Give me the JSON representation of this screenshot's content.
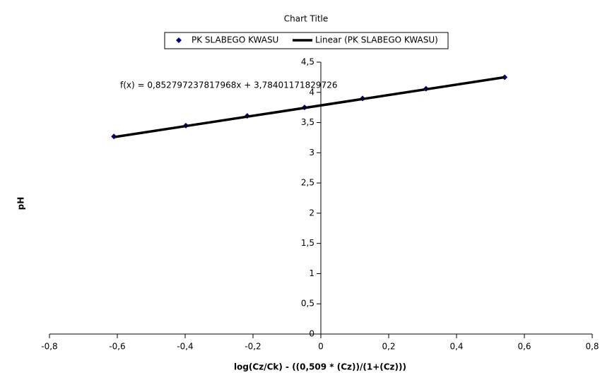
{
  "chart_data": {
    "type": "scatter",
    "title": "Chart Title",
    "x_label": "log(Cz/Ck) - ((0,509 * (Cz))/(1+(Cz)))",
    "y_label": "pH",
    "annotation": "f(x) = 0,852797237817968x + 3,78401171829726",
    "legend": "top",
    "series": [
      {
        "name": "PK SLABEGO KWASU",
        "color": "#000080",
        "marker": "diamond",
        "x": [
          -0.61,
          -0.398,
          -0.217,
          -0.048,
          0.123,
          0.31,
          0.542
        ],
        "values": [
          3.27,
          3.45,
          3.61,
          3.75,
          3.9,
          4.06,
          4.25
        ]
      },
      {
        "name": "Linear (PK SLABEGO KWASU)",
        "color": "#000000",
        "marker": "line",
        "x": [
          -0.61,
          0.542
        ],
        "values": [
          3.26,
          4.25
        ]
      }
    ],
    "xlim": [
      -0.8,
      0.8
    ],
    "xticks": [
      {
        "value": -0.8,
        "label": "-0,8"
      },
      {
        "value": -0.6,
        "label": "-0,6"
      },
      {
        "value": -0.4,
        "label": "-0,4"
      },
      {
        "value": -0.2,
        "label": "-0,2"
      },
      0,
      {
        "value": 0.2,
        "label": "0,2"
      },
      {
        "value": 0.4,
        "label": "0,4"
      },
      {
        "value": 0.6,
        "label": "0,6"
      },
      {
        "value": 0.8,
        "label": "0,8"
      }
    ],
    "ylim": [
      0,
      4.5
    ],
    "yticks": [
      0,
      {
        "value": 0.5,
        "label": "0,5"
      },
      1,
      {
        "value": 1.5,
        "label": "1,5"
      },
      2,
      {
        "value": 2.5,
        "label": "2,5"
      },
      3,
      {
        "value": 3.5,
        "label": "3,5"
      },
      4,
      {
        "value": 4.5,
        "label": "4,5"
      }
    ],
    "grid": false
  }
}
